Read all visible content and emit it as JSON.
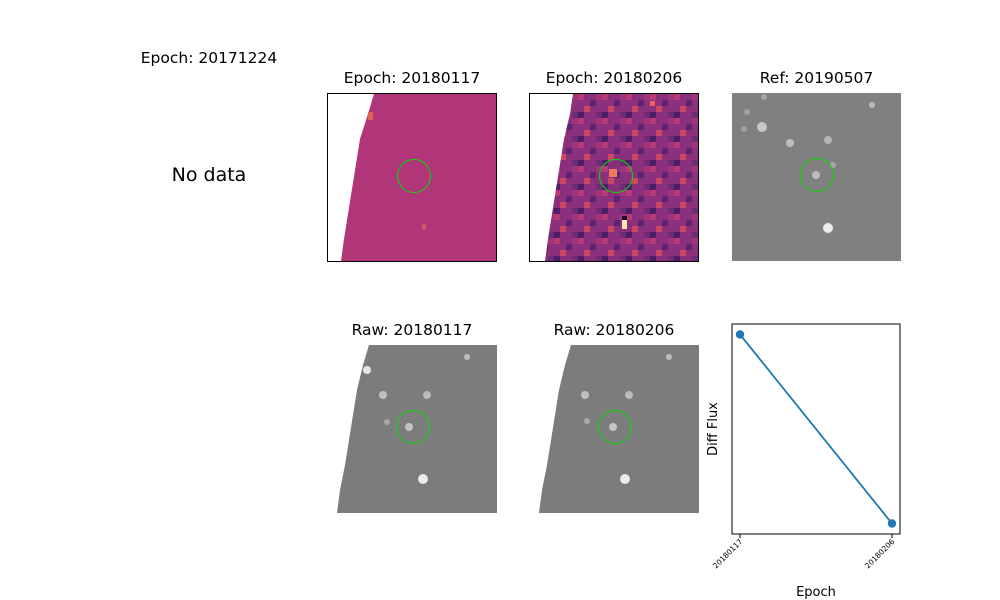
{
  "figure": {
    "missing_panel": {
      "title": "Epoch: 20171224",
      "message": "No data"
    },
    "diff_panels": [
      {
        "title": "Epoch: 20180117"
      },
      {
        "title": "Epoch: 20180206"
      }
    ],
    "ref_panel": {
      "title": "Ref: 20190507"
    },
    "raw_panels": [
      {
        "title": "Raw: 20180117"
      },
      {
        "title": "Raw: 20180206"
      }
    ]
  },
  "colors": {
    "marker_ring": "#00e000",
    "line": "#1f77b4",
    "magma_fill": "#b03579",
    "gray_sky": "#808080"
  },
  "chart_data": {
    "type": "line",
    "xlabel": "Epoch",
    "ylabel": "Diff Flux",
    "categories": [
      "20180117",
      "20180206"
    ],
    "series": [
      {
        "values": [
          0.95,
          0.05
        ]
      }
    ],
    "y_ticks_shown": false,
    "grid": false,
    "legend": "none"
  }
}
